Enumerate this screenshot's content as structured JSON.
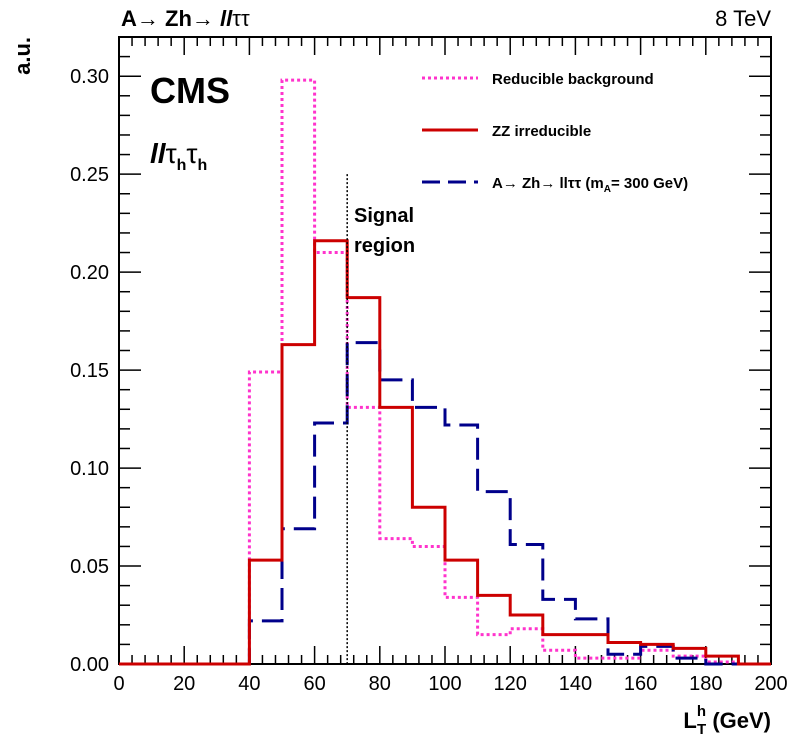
{
  "chart_data": {
    "type": "histogram",
    "header_left": "A→ Zh→llττ",
    "header_right": "8 TeV",
    "experiment": "CMS",
    "channel": "llτhτh",
    "xlabel": "L_T^h (GeV)",
    "ylabel": "a.u.",
    "xlim": [
      0,
      200
    ],
    "ylim": [
      0,
      0.32
    ],
    "xticks": [
      "0",
      "20",
      "40",
      "60",
      "80",
      "100",
      "120",
      "140",
      "160",
      "180",
      "200"
    ],
    "yticks": [
      "0.00",
      "0.05",
      "0.10",
      "0.15",
      "0.20",
      "0.25",
      "0.30"
    ],
    "bin_edges": [
      0,
      10,
      20,
      30,
      40,
      50,
      60,
      70,
      80,
      90,
      100,
      110,
      120,
      130,
      140,
      150,
      160,
      170,
      180,
      190,
      200
    ],
    "series": [
      {
        "name": "Reducible background",
        "style": "dotted",
        "color": "#ff33cc",
        "values": [
          0,
          0,
          0,
          0,
          0.149,
          0.298,
          0.21,
          0.131,
          0.064,
          0.06,
          0.034,
          0.015,
          0.018,
          0.007,
          0.003,
          0.003,
          0.007,
          0.004,
          0.001,
          0
        ]
      },
      {
        "name": "ZZ irreducible",
        "style": "solid",
        "color": "#cc0000",
        "values": [
          0,
          0,
          0,
          0,
          0.053,
          0.163,
          0.216,
          0.187,
          0.131,
          0.08,
          0.053,
          0.035,
          0.025,
          0.015,
          0.015,
          0.011,
          0.01,
          0.008,
          0.004,
          0
        ]
      },
      {
        "name_prefix": "A→ Zh→ llττ (m",
        "name_sub": "A",
        "name_suffix": "= 300 GeV)",
        "style": "dashed",
        "color": "#00008b",
        "values": [
          0,
          0,
          0,
          0,
          0.022,
          0.069,
          0.123,
          0.164,
          0.145,
          0.131,
          0.122,
          0.088,
          0.061,
          0.033,
          0.023,
          0.005,
          0.009,
          0.003,
          0,
          0
        ]
      }
    ],
    "signal_region": {
      "label_line1": "Signal",
      "label_line2": "region",
      "x": 70
    },
    "legend_position": "top-right"
  }
}
